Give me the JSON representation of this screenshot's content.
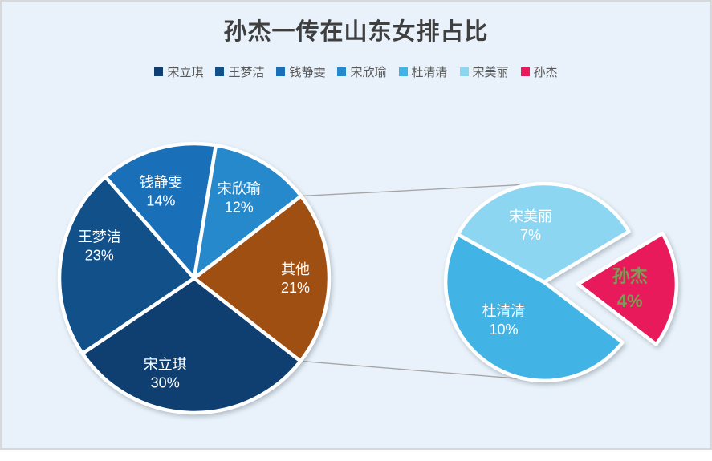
{
  "window": {
    "background": "#FFFFFF",
    "frame_fill": "#E9F2FA",
    "frame_border": "#D8D8D8"
  },
  "chart_data": {
    "type": "pie",
    "subtype": "pie-of-pie",
    "title": "孙杰一传在山东女排占比",
    "legend_position": "top",
    "legend": [
      {
        "label": "宋立琪",
        "color": "#0F3F70"
      },
      {
        "label": "王梦洁",
        "color": "#115089"
      },
      {
        "label": "钱静雯",
        "color": "#1A70B8"
      },
      {
        "label": "宋欣瑜",
        "color": "#2589CB"
      },
      {
        "label": "杜清清",
        "color": "#41B4E5"
      },
      {
        "label": "宋美丽",
        "color": "#8CD6F2"
      },
      {
        "label": "孙杰",
        "color": "#E91A5C"
      }
    ],
    "main_pie": {
      "start_angle_deg": 128,
      "slices": [
        {
          "label": "宋立琪",
          "value": 30,
          "pct": "30%",
          "color": "#0F3F70",
          "text_color": "#FFFFFF"
        },
        {
          "label": "王梦洁",
          "value": 23,
          "pct": "23%",
          "color": "#115089",
          "text_color": "#FFFFFF"
        },
        {
          "label": "钱静雯",
          "value": 14,
          "pct": "14%",
          "color": "#1A70B8",
          "text_color": "#FFFFFF"
        },
        {
          "label": "宋欣瑜",
          "value": 12,
          "pct": "12%",
          "color": "#2589CB",
          "text_color": "#FFFFFF"
        },
        {
          "label": "其他",
          "value": 21,
          "pct": "21%",
          "color": "#A04F12",
          "text_color": "#FFFFFF"
        }
      ]
    },
    "secondary_pie": {
      "start_angle_deg": 127.6,
      "slices": [
        {
          "label": "杜清清",
          "value": 10,
          "pct": "10%",
          "color": "#41B4E5",
          "text_color": "#FFFFFF"
        },
        {
          "label": "宋美丽",
          "value": 7,
          "pct": "7%",
          "color": "#8CD6F2",
          "text_color": "#FFFFFF"
        },
        {
          "label": "孙杰",
          "value": 4,
          "pct": "4%",
          "color": "#E91A5C",
          "text_color": "#7C9D55",
          "exploded": true,
          "emphasized": true
        }
      ]
    },
    "connector_color": "#A6A6A6",
    "slice_separator_color": "#FFFFFF"
  }
}
